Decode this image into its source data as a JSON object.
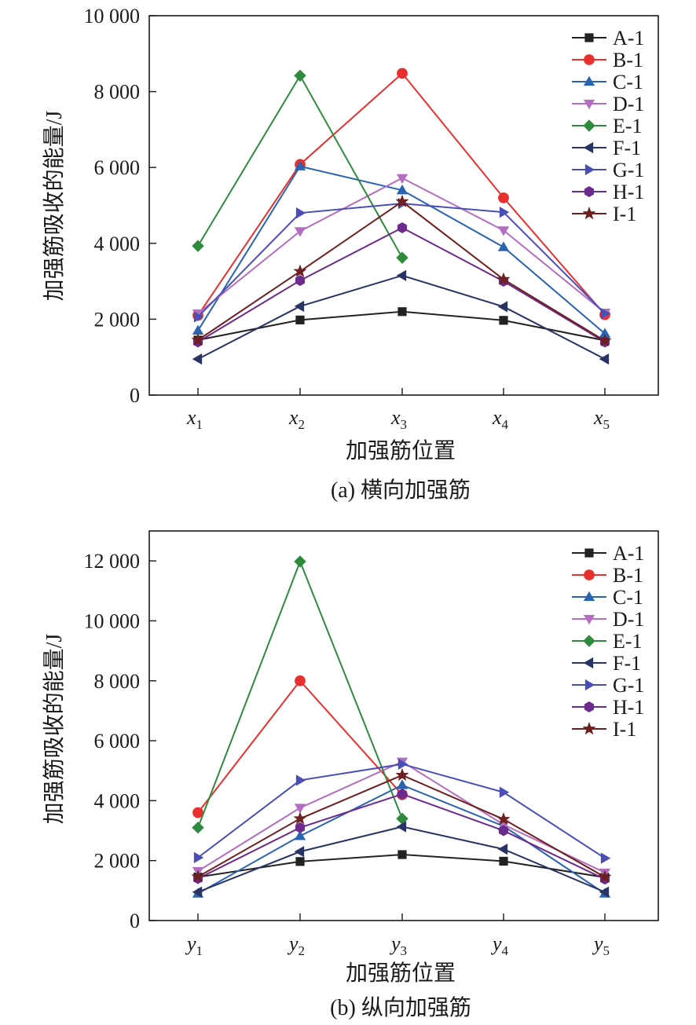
{
  "figure": {
    "panels": [
      {
        "caption": "(a) 横向加强筋",
        "ylabel": "加强筋吸收的能量/J",
        "xlabel": "加强筋位置",
        "xtick_base": "x",
        "yticks": [
          "0",
          "2 000",
          "4 000",
          "6 000",
          "8 000",
          "10 000"
        ]
      },
      {
        "caption": "(b) 纵向加强筋",
        "ylabel": "加强筋吸收的能量/J",
        "xlabel": "加强筋位置",
        "xtick_base": "y",
        "yticks": [
          "0",
          "2 000",
          "4 000",
          "6 000",
          "8 000",
          "10 000",
          "12 000"
        ]
      }
    ]
  },
  "chart_data": [
    {
      "type": "line",
      "title": "",
      "caption": "(a) 横向加强筋",
      "xlabel": "加强筋位置",
      "ylabel": "加强筋吸收的能量/J",
      "categories": [
        "x1",
        "x2",
        "x3",
        "x4",
        "x5"
      ],
      "ylim": [
        0,
        10000
      ],
      "ytick_step": 2000,
      "grid": false,
      "legend_position": "top-right",
      "series": [
        {
          "name": "A-1",
          "color": "#222222",
          "marker": "square",
          "values": [
            1450,
            1980,
            2200,
            1970,
            1440
          ]
        },
        {
          "name": "B-1",
          "color": "#e8312f",
          "marker": "circle",
          "values": [
            2100,
            6080,
            8480,
            5200,
            2120
          ]
        },
        {
          "name": "C-1",
          "color": "#2a63b0",
          "marker": "triangle-up",
          "values": [
            1700,
            6030,
            5400,
            3900,
            1620
          ]
        },
        {
          "name": "D-1",
          "color": "#b46ec0",
          "marker": "triangle-down",
          "values": [
            2150,
            4320,
            5720,
            4340,
            2170
          ]
        },
        {
          "name": "E-1",
          "color": "#2e8b3e",
          "marker": "diamond",
          "values": [
            3930,
            8420,
            3620,
            null,
            null
          ]
        },
        {
          "name": "F-1",
          "color": "#283463",
          "marker": "triangle-left",
          "values": [
            950,
            2340,
            3150,
            2330,
            950
          ]
        },
        {
          "name": "G-1",
          "color": "#4a4fb5",
          "marker": "triangle-right",
          "values": [
            2060,
            4800,
            5050,
            4820,
            2150
          ]
        },
        {
          "name": "H-1",
          "color": "#6b2a8c",
          "marker": "hexagon",
          "values": [
            1400,
            3020,
            4410,
            3000,
            1400
          ]
        },
        {
          "name": "I-1",
          "color": "#6e1f1f",
          "marker": "star",
          "values": [
            1450,
            3260,
            5100,
            3050,
            1430
          ]
        }
      ]
    },
    {
      "type": "line",
      "title": "",
      "caption": "(b) 纵向加强筋",
      "xlabel": "加强筋位置",
      "ylabel": "加强筋吸收的能量/J",
      "categories": [
        "y1",
        "y2",
        "y3",
        "y4",
        "y5"
      ],
      "ylim": [
        0,
        13000
      ],
      "ytick_step": 2000,
      "grid": false,
      "legend_position": "top-right",
      "series": [
        {
          "name": "A-1",
          "color": "#222222",
          "marker": "square",
          "values": [
            1450,
            1970,
            2200,
            1980,
            1440
          ]
        },
        {
          "name": "B-1",
          "color": "#e8312f",
          "marker": "circle",
          "values": [
            3600,
            8000,
            4200,
            null,
            null
          ]
        },
        {
          "name": "C-1",
          "color": "#2a63b0",
          "marker": "triangle-up",
          "values": [
            900,
            2820,
            4520,
            3150,
            900
          ]
        },
        {
          "name": "D-1",
          "color": "#b46ec0",
          "marker": "triangle-down",
          "values": [
            1650,
            3760,
            5300,
            3200,
            1600
          ]
        },
        {
          "name": "E-1",
          "color": "#2e8b3e",
          "marker": "diamond",
          "values": [
            3100,
            11980,
            3400,
            null,
            null
          ]
        },
        {
          "name": "F-1",
          "color": "#283463",
          "marker": "triangle-left",
          "values": [
            950,
            2300,
            3130,
            2380,
            950
          ]
        },
        {
          "name": "G-1",
          "color": "#4a4fb5",
          "marker": "triangle-right",
          "values": [
            2100,
            4680,
            5220,
            4280,
            2080
          ]
        },
        {
          "name": "H-1",
          "color": "#6b2a8c",
          "marker": "hexagon",
          "values": [
            1400,
            3100,
            4220,
            3000,
            1380
          ]
        },
        {
          "name": "I-1",
          "color": "#6e1f1f",
          "marker": "star",
          "values": [
            1460,
            3400,
            4850,
            3380,
            1450
          ]
        }
      ]
    }
  ]
}
